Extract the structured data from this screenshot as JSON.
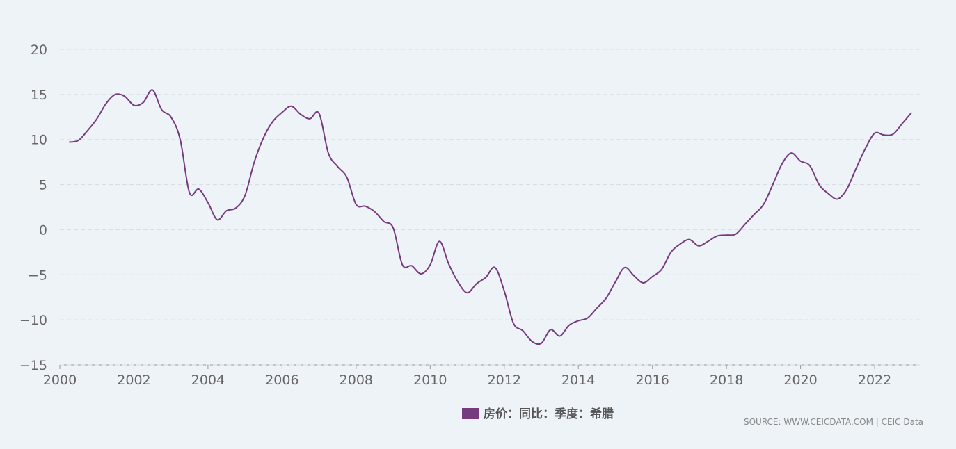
{
  "chart_data": {
    "type": "line",
    "x": [
      2000.25,
      2000.5,
      2000.75,
      2001,
      2001.25,
      2001.5,
      2001.75,
      2002,
      2002.25,
      2002.5,
      2002.75,
      2003,
      2003.25,
      2003.5,
      2003.75,
      2004,
      2004.25,
      2004.5,
      2004.75,
      2005,
      2005.25,
      2005.5,
      2005.75,
      2006,
      2006.25,
      2006.5,
      2006.75,
      2007,
      2007.25,
      2007.5,
      2007.75,
      2008,
      2008.25,
      2008.5,
      2008.75,
      2009,
      2009.25,
      2009.5,
      2009.75,
      2010,
      2010.25,
      2010.5,
      2010.75,
      2011,
      2011.25,
      2011.5,
      2011.75,
      2012,
      2012.25,
      2012.5,
      2012.75,
      2013,
      2013.25,
      2013.5,
      2013.75,
      2014,
      2014.25,
      2014.5,
      2014.75,
      2015,
      2015.25,
      2015.5,
      2015.75,
      2016,
      2016.25,
      2016.5,
      2016.75,
      2017,
      2017.25,
      2017.5,
      2017.75,
      2018,
      2018.25,
      2018.5,
      2018.75,
      2019,
      2019.25,
      2019.5,
      2019.75,
      2020,
      2020.25,
      2020.5,
      2020.75,
      2021,
      2021.25,
      2021.5,
      2021.75,
      2022,
      2022.25,
      2022.5,
      2022.75,
      2023
    ],
    "series": [
      {
        "name": "房价：同比：季度：希腊",
        "color": "#763a7f",
        "values": [
          9.7,
          9.9,
          11,
          12.3,
          14,
          15,
          14.8,
          13.8,
          14.1,
          15.5,
          13.3,
          12.5,
          10,
          4.1,
          4.5,
          3,
          1.1,
          2.1,
          2.4,
          3.8,
          7.5,
          10.2,
          12,
          13,
          13.7,
          12.8,
          12.3,
          12.9,
          8.5,
          7,
          5.8,
          2.8,
          2.6,
          2,
          0.9,
          0.2,
          -3.9,
          -4,
          -4.9,
          -3.9,
          -1.3,
          -3.8,
          -5.8,
          -7,
          -6,
          -5.3,
          -4.2,
          -6.8,
          -10.4,
          -11.2,
          -12.4,
          -12.6,
          -11.1,
          -11.8,
          -10.6,
          -10.1,
          -9.8,
          -8.7,
          -7.6,
          -5.8,
          -4.2,
          -5.1,
          -5.9,
          -5.2,
          -4.4,
          -2.5,
          -1.6,
          -1.1,
          -1.8,
          -1.3,
          -0.7,
          -0.6,
          -0.5,
          0.6,
          1.7,
          2.8,
          5,
          7.3,
          8.5,
          7.6,
          7.1,
          5,
          4,
          3.4,
          4.5,
          6.8,
          9,
          10.7,
          10.5,
          10.6,
          11.8,
          13
        ]
      }
    ],
    "xlim": [
      2000,
      2023.22
    ],
    "xticks": [
      2000,
      2002,
      2004,
      2006,
      2008,
      2010,
      2012,
      2014,
      2016,
      2018,
      2020,
      2022
    ],
    "ylim": [
      -15,
      20
    ],
    "yticks": [
      {
        "value": -15,
        "label": "−15"
      },
      {
        "value": -10,
        "label": "−10"
      },
      {
        "value": -5,
        "label": "−5"
      },
      0,
      5,
      10,
      15,
      20
    ],
    "grid": true,
    "legend": "bottom",
    "source": "SOURCE: WWW.CEICDATA.COM | CEIC Data"
  }
}
